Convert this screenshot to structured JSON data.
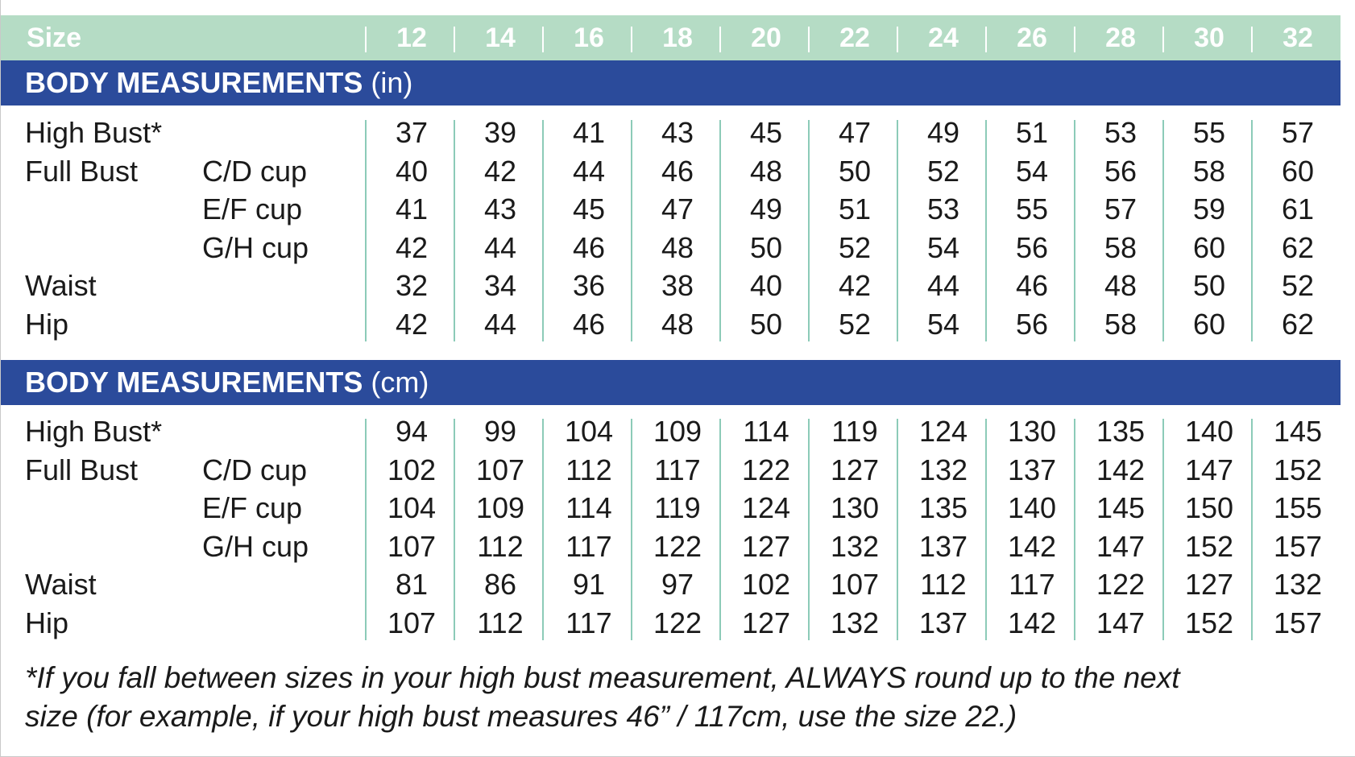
{
  "header": {
    "size_label": "Size",
    "sizes": [
      "12",
      "14",
      "16",
      "18",
      "20",
      "22",
      "24",
      "26",
      "28",
      "30",
      "32"
    ]
  },
  "sections": [
    {
      "title": "BODY MEASUREMENTS",
      "unit": "(in)",
      "rows": [
        {
          "label": "High Bust*",
          "sub": "",
          "values": [
            "37",
            "39",
            "41",
            "43",
            "45",
            "47",
            "49",
            "51",
            "53",
            "55",
            "57"
          ]
        },
        {
          "label": "Full Bust",
          "sub": "C/D cup",
          "values": [
            "40",
            "42",
            "44",
            "46",
            "48",
            "50",
            "52",
            "54",
            "56",
            "58",
            "60"
          ]
        },
        {
          "label": "",
          "sub": "E/F cup",
          "values": [
            "41",
            "43",
            "45",
            "47",
            "49",
            "51",
            "53",
            "55",
            "57",
            "59",
            "61"
          ]
        },
        {
          "label": "",
          "sub": "G/H cup",
          "values": [
            "42",
            "44",
            "46",
            "48",
            "50",
            "52",
            "54",
            "56",
            "58",
            "60",
            "62"
          ]
        },
        {
          "label": "Waist",
          "sub": "",
          "values": [
            "32",
            "34",
            "36",
            "38",
            "40",
            "42",
            "44",
            "46",
            "48",
            "50",
            "52"
          ]
        },
        {
          "label": "Hip",
          "sub": "",
          "values": [
            "42",
            "44",
            "46",
            "48",
            "50",
            "52",
            "54",
            "56",
            "58",
            "60",
            "62"
          ]
        }
      ]
    },
    {
      "title": "BODY MEASUREMENTS",
      "unit": "(cm)",
      "rows": [
        {
          "label": "High Bust*",
          "sub": "",
          "values": [
            "94",
            "99",
            "104",
            "109",
            "114",
            "119",
            "124",
            "130",
            "135",
            "140",
            "145"
          ]
        },
        {
          "label": "Full Bust",
          "sub": "C/D cup",
          "values": [
            "102",
            "107",
            "112",
            "117",
            "122",
            "127",
            "132",
            "137",
            "142",
            "147",
            "152"
          ]
        },
        {
          "label": "",
          "sub": "E/F cup",
          "values": [
            "104",
            "109",
            "114",
            "119",
            "124",
            "130",
            "135",
            "140",
            "145",
            "150",
            "155"
          ]
        },
        {
          "label": "",
          "sub": "G/H cup",
          "values": [
            "107",
            "112",
            "117",
            "122",
            "127",
            "132",
            "137",
            "142",
            "147",
            "152",
            "157"
          ]
        },
        {
          "label": "Waist",
          "sub": "",
          "values": [
            "81",
            "86",
            "91",
            "97",
            "102",
            "107",
            "112",
            "117",
            "122",
            "127",
            "132"
          ]
        },
        {
          "label": "Hip",
          "sub": "",
          "values": [
            "107",
            "112",
            "117",
            "122",
            "127",
            "132",
            "137",
            "142",
            "147",
            "152",
            "157"
          ]
        }
      ]
    }
  ],
  "footnote": {
    "line1": "*If you fall between sizes in your high bust measurement, ALWAYS round up to the next",
    "line2": "size (for example, if your high bust measures 46” / 117cm, use the size 22.)"
  },
  "colors": {
    "size_header_bg": "#b5dcc5",
    "section_bar_bg": "#2b4b9b",
    "column_divider": "#8ccbb8"
  }
}
